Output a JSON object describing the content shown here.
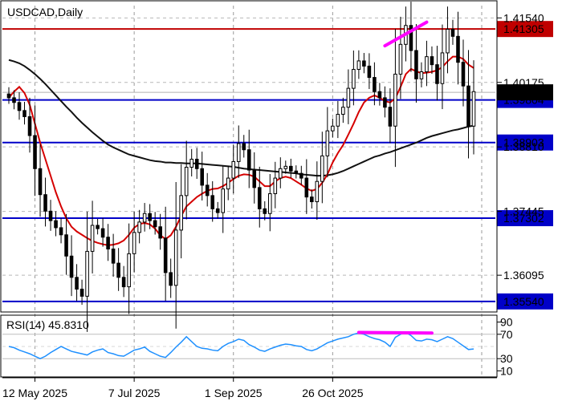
{
  "chart_data": {
    "type": "candlestick",
    "title": "USDCAD,Daily",
    "x_tick_labels": [
      "12 May 2025",
      "7 Jul 2025",
      "1 Sep 2025",
      "26 Oct 2025"
    ],
    "y_tick_labels": [
      1.4154,
      1.40175,
      1.3881,
      1.37445,
      1.36095
    ],
    "y_tick_text": [
      "1.41540",
      "1.40175",
      "1.38810",
      "1.37445",
      "1.36095"
    ],
    "ylim": [
      1.353,
      1.418
    ],
    "current_price": 1.39965,
    "current_price_text": "1.39965",
    "horizontal_levels": [
      {
        "value": 1.41305,
        "label": "1.41305",
        "color": "#c00000"
      },
      {
        "value": 1.39804,
        "label": "1.39804",
        "color": "#0000c8"
      },
      {
        "value": 1.38903,
        "label": "1.38903",
        "color": "#0000c8"
      },
      {
        "value": 1.37302,
        "label": "1.37302",
        "color": "#0000c8"
      },
      {
        "value": 1.3554,
        "label": "1.35540",
        "color": "#0000c8"
      }
    ],
    "price_path": [
      1.3985,
      1.3975,
      1.3958,
      1.3945,
      1.3905,
      1.3835,
      1.378,
      1.3745,
      1.3725,
      1.371,
      1.3695,
      1.365,
      1.3605,
      1.358,
      1.3565,
      1.366,
      1.3715,
      1.3708,
      1.369,
      1.3665,
      1.3635,
      1.3605,
      1.3585,
      1.3655,
      1.37,
      1.3722,
      1.374,
      1.3725,
      1.3712,
      1.3688,
      1.3615,
      1.3588,
      1.3705,
      1.3778,
      1.3838,
      1.3855,
      1.3835,
      1.38,
      1.3778,
      1.375,
      1.3742,
      1.3792,
      1.3815,
      1.385,
      1.3888,
      1.3875,
      1.3832,
      1.3795,
      1.375,
      1.374,
      1.3782,
      1.3815,
      1.3835,
      1.384,
      1.383,
      1.3825,
      1.3815,
      1.3775,
      1.3765,
      1.3808,
      1.3862,
      1.3915,
      1.3925,
      1.395,
      1.3965,
      1.4005,
      1.4045,
      1.4063,
      1.4052,
      1.4028,
      1.3998,
      1.3985,
      1.3965,
      1.3925,
      1.4035,
      1.4098,
      1.4138,
      1.4085,
      1.4025,
      1.404,
      1.4072,
      1.4055,
      1.4015,
      1.408,
      1.413,
      1.4115,
      1.406,
      1.401,
      1.3925,
      1.3998
    ],
    "ma_fast": [
      1.3985,
      1.3998,
      1.4008,
      1.3995,
      1.397,
      1.393,
      1.389,
      1.3855,
      1.382,
      1.3785,
      1.3755,
      1.373,
      1.3712,
      1.3702,
      1.3695,
      1.3688,
      1.3682,
      1.3678,
      1.3675,
      1.3673,
      1.3674,
      1.3677,
      1.3683,
      1.3695,
      1.371,
      1.3718,
      1.372,
      1.3717,
      1.3708,
      1.3694,
      1.3686,
      1.3694,
      1.3712,
      1.3735,
      1.3755,
      1.3765,
      1.3775,
      1.3782,
      1.3788,
      1.3792,
      1.3793,
      1.3798,
      1.3805,
      1.3813,
      1.382,
      1.3823,
      1.3822,
      1.3818,
      1.3808,
      1.3798,
      1.3798,
      1.3808,
      1.3815,
      1.3818,
      1.3815,
      1.3808,
      1.3801,
      1.3793,
      1.3788,
      1.3792,
      1.3805,
      1.3823,
      1.3848,
      1.3868,
      1.3885,
      1.3907,
      1.393,
      1.3955,
      1.3975,
      1.3985,
      1.399,
      1.3985,
      1.3978,
      1.3975,
      1.3984,
      1.4008,
      1.4035,
      1.4046,
      1.4041,
      1.4037,
      1.4038,
      1.404,
      1.4043,
      1.405,
      1.4062,
      1.4072,
      1.4072,
      1.4067,
      1.4055,
      1.4048
    ],
    "ma_slow": [
      1.4065,
      1.4062,
      1.4058,
      1.4052,
      1.4044,
      1.4035,
      1.4025,
      1.4014,
      1.4002,
      1.399,
      1.3978,
      1.3966,
      1.3955,
      1.3943,
      1.3932,
      1.3922,
      1.3912,
      1.3903,
      1.3894,
      1.3886,
      1.388,
      1.3875,
      1.387,
      1.3865,
      1.3862,
      1.3859,
      1.3856,
      1.3853,
      1.3851,
      1.385,
      1.3848,
      1.3848,
      1.3847,
      1.3847,
      1.3846,
      1.3846,
      1.3846,
      1.3845,
      1.3844,
      1.3843,
      1.3842,
      1.3841,
      1.384,
      1.3839,
      1.3837,
      1.3835,
      1.3834,
      1.3833,
      1.3832,
      1.3831,
      1.383,
      1.3829,
      1.3828,
      1.3827,
      1.3826,
      1.3825,
      1.3823,
      1.3822,
      1.3821,
      1.382,
      1.382,
      1.3821,
      1.3823,
      1.3826,
      1.383,
      1.3835,
      1.384,
      1.3845,
      1.385,
      1.3855,
      1.386,
      1.3863,
      1.3867,
      1.387,
      1.3874,
      1.3878,
      1.3882,
      1.3886,
      1.389,
      1.3895,
      1.39,
      1.3904,
      1.3907,
      1.391,
      1.3913,
      1.3916,
      1.3918,
      1.3921,
      1.3924,
      1.3926
    ],
    "price_trendline": {
      "from": [
        72,
        1.4095
      ],
      "to": [
        80,
        1.4145
      ],
      "color": "#ff00ff"
    },
    "rsi": {
      "label": "RSI(14) 45.8310",
      "ylim": [
        0,
        100
      ],
      "y_tick_labels": [
        90,
        70,
        30,
        10
      ],
      "y_tick_text": [
        "90",
        "70",
        "30",
        "10"
      ],
      "values": [
        50,
        48,
        44,
        41,
        38,
        34,
        30,
        34,
        40,
        45,
        50,
        46,
        42,
        40,
        38,
        36,
        41,
        44,
        46,
        40,
        38,
        35,
        34,
        39,
        44,
        46,
        49,
        42,
        38,
        34,
        32,
        40,
        49,
        57,
        66,
        58,
        50,
        47,
        46,
        44,
        43,
        50,
        55,
        58,
        62,
        60,
        53,
        49,
        44,
        42,
        46,
        49,
        52,
        54,
        53,
        51,
        50,
        45,
        43,
        46,
        51,
        56,
        59,
        62,
        64,
        66,
        70,
        72,
        70,
        66,
        63,
        61,
        57,
        50,
        65,
        70,
        73,
        68,
        60,
        59,
        62,
        61,
        58,
        62,
        66,
        63,
        57,
        51,
        45,
        45.83
      ],
      "trendline": {
        "from": [
          67,
          73
        ],
        "to": [
          81,
          72
        ],
        "color": "#ff00ff"
      }
    }
  }
}
